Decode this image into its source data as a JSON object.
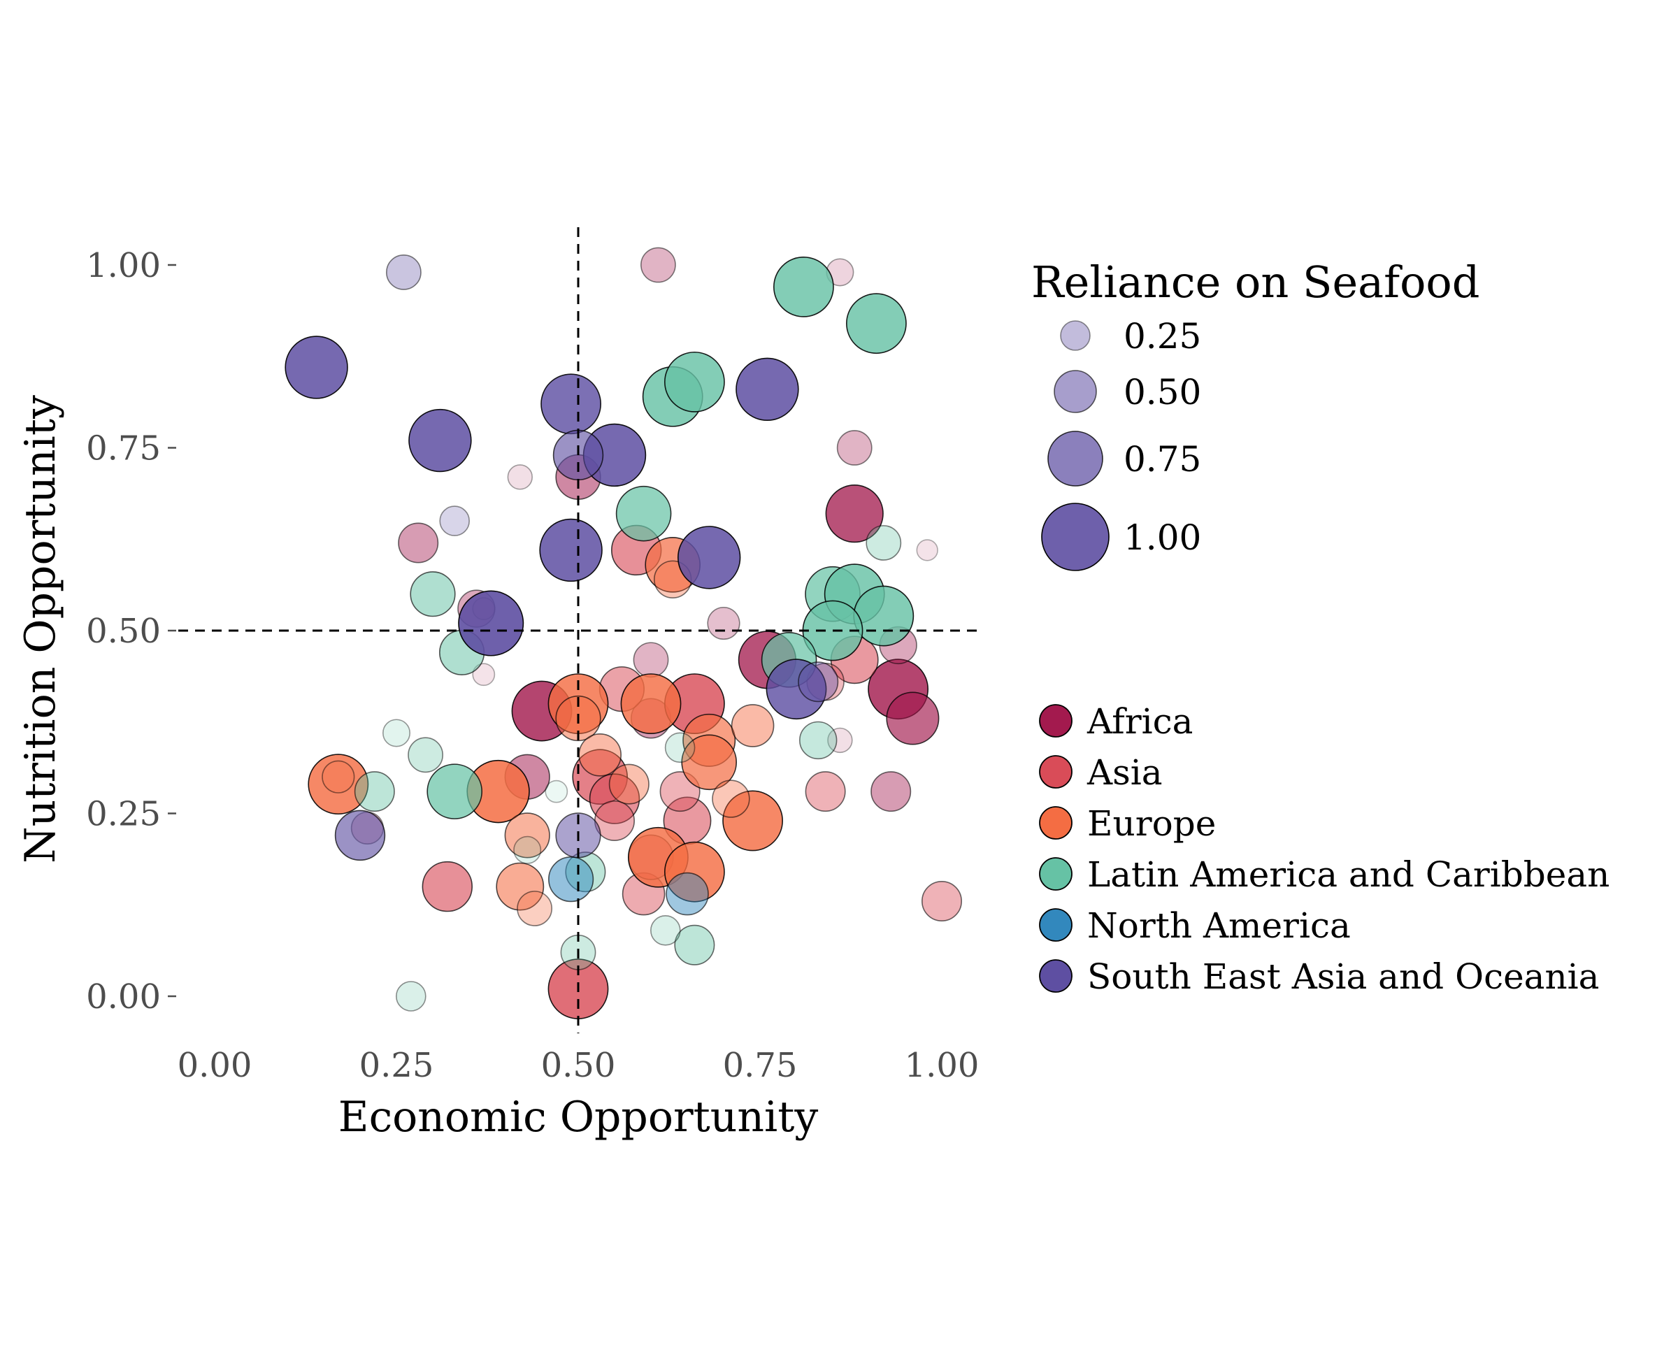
{
  "chart_data": {
    "type": "scatter",
    "xlabel": "Economic Opportunity",
    "ylabel": "Nutrition Opportunity",
    "xlim": [
      -0.05,
      1.05
    ],
    "ylim": [
      -0.05,
      1.05
    ],
    "x_ticks": [
      "0.00",
      "0.25",
      "0.50",
      "0.75",
      "1.00"
    ],
    "y_ticks": [
      "0.00",
      "0.25",
      "0.50",
      "0.75",
      "1.00"
    ],
    "x_tick_values": [
      0,
      0.25,
      0.5,
      0.75,
      1
    ],
    "y_tick_values": [
      0,
      0.25,
      0.5,
      0.75,
      1
    ],
    "grid": false,
    "reference_lines": {
      "x": 0.5,
      "y": 0.5,
      "style": "dashed"
    },
    "size_legend": {
      "title": "Reliance on Seafood",
      "labels": [
        "0.25",
        "0.50",
        "0.75",
        "1.00"
      ],
      "values": [
        0.25,
        0.5,
        0.75,
        1.0
      ]
    },
    "color_legend": {
      "title": "",
      "position": "right"
    },
    "series": [
      {
        "name": "Africa",
        "color": "#a31a4e",
        "points": [
          {
            "x": 0.88,
            "y": 0.66,
            "r": 0.8
          },
          {
            "x": 0.45,
            "y": 0.39,
            "r": 0.85
          },
          {
            "x": 0.76,
            "y": 0.46,
            "r": 0.8
          },
          {
            "x": 0.94,
            "y": 0.42,
            "r": 0.85
          },
          {
            "x": 0.96,
            "y": 0.38,
            "r": 0.7
          },
          {
            "x": 0.5,
            "y": 0.71,
            "r": 0.55
          },
          {
            "x": 0.43,
            "y": 0.3,
            "r": 0.55
          },
          {
            "x": 0.28,
            "y": 0.62,
            "r": 0.45
          },
          {
            "x": 0.88,
            "y": 0.75,
            "r": 0.35
          },
          {
            "x": 0.93,
            "y": 0.28,
            "r": 0.45
          },
          {
            "x": 0.36,
            "y": 0.53,
            "r": 0.4
          },
          {
            "x": 0.6,
            "y": 0.46,
            "r": 0.35
          },
          {
            "x": 0.21,
            "y": 0.23,
            "r": 0.3
          },
          {
            "x": 0.61,
            "y": 1.0,
            "r": 0.35
          },
          {
            "x": 0.86,
            "y": 0.99,
            "r": 0.2
          },
          {
            "x": 0.42,
            "y": 0.71,
            "r": 0.15
          },
          {
            "x": 0.86,
            "y": 0.35,
            "r": 0.15
          },
          {
            "x": 0.37,
            "y": 0.44,
            "r": 0.1
          },
          {
            "x": 0.98,
            "y": 0.61,
            "r": 0.08
          },
          {
            "x": 0.7,
            "y": 0.51,
            "r": 0.3
          },
          {
            "x": 0.94,
            "y": 0.48,
            "r": 0.4
          },
          {
            "x": 0.6,
            "y": 0.38,
            "r": 0.45
          },
          {
            "x": 0.37,
            "y": 0.53,
            "r": 0.1
          }
        ]
      },
      {
        "name": "Asia",
        "color": "#d94c58",
        "points": [
          {
            "x": 0.5,
            "y": 0.01,
            "r": 0.85
          },
          {
            "x": 0.66,
            "y": 0.4,
            "r": 0.85
          },
          {
            "x": 0.53,
            "y": 0.3,
            "r": 0.75
          },
          {
            "x": 0.55,
            "y": 0.27,
            "r": 0.65
          },
          {
            "x": 0.32,
            "y": 0.15,
            "r": 0.65
          },
          {
            "x": 0.58,
            "y": 0.61,
            "r": 0.65
          },
          {
            "x": 0.65,
            "y": 0.24,
            "r": 0.6
          },
          {
            "x": 0.88,
            "y": 0.46,
            "r": 0.6
          },
          {
            "x": 0.59,
            "y": 0.14,
            "r": 0.5
          },
          {
            "x": 0.84,
            "y": 0.28,
            "r": 0.45
          },
          {
            "x": 1.0,
            "y": 0.13,
            "r": 0.45
          },
          {
            "x": 0.64,
            "y": 0.28,
            "r": 0.45
          },
          {
            "x": 0.56,
            "y": 0.42,
            "r": 0.55
          },
          {
            "x": 0.6,
            "y": 0.19,
            "r": 0.55
          },
          {
            "x": 0.84,
            "y": 0.43,
            "r": 0.4
          },
          {
            "x": 0.55,
            "y": 0.24,
            "r": 0.45
          }
        ]
      },
      {
        "name": "Europe",
        "color": "#f46d43",
        "points": [
          {
            "x": 0.17,
            "y": 0.29,
            "r": 0.85
          },
          {
            "x": 0.39,
            "y": 0.28,
            "r": 0.9
          },
          {
            "x": 0.5,
            "y": 0.4,
            "r": 0.85
          },
          {
            "x": 0.6,
            "y": 0.4,
            "r": 0.85
          },
          {
            "x": 0.63,
            "y": 0.59,
            "r": 0.75
          },
          {
            "x": 0.74,
            "y": 0.24,
            "r": 0.85
          },
          {
            "x": 0.61,
            "y": 0.19,
            "r": 0.85
          },
          {
            "x": 0.66,
            "y": 0.17,
            "r": 0.85
          },
          {
            "x": 0.68,
            "y": 0.35,
            "r": 0.7
          },
          {
            "x": 0.68,
            "y": 0.32,
            "r": 0.75
          },
          {
            "x": 0.43,
            "y": 0.22,
            "r": 0.55
          },
          {
            "x": 0.42,
            "y": 0.15,
            "r": 0.6
          },
          {
            "x": 0.5,
            "y": 0.38,
            "r": 0.55
          },
          {
            "x": 0.53,
            "y": 0.33,
            "r": 0.5
          },
          {
            "x": 0.74,
            "y": 0.37,
            "r": 0.5
          },
          {
            "x": 0.57,
            "y": 0.29,
            "r": 0.45
          },
          {
            "x": 0.44,
            "y": 0.12,
            "r": 0.35
          },
          {
            "x": 0.71,
            "y": 0.27,
            "r": 0.4
          },
          {
            "x": 0.17,
            "y": 0.3,
            "r": 0.3
          },
          {
            "x": 0.63,
            "y": 0.57,
            "r": 0.4
          }
        ]
      },
      {
        "name": "Latin America and Caribbean",
        "color": "#66c2a5",
        "points": [
          {
            "x": 0.81,
            "y": 0.97,
            "r": 0.85
          },
          {
            "x": 0.91,
            "y": 0.92,
            "r": 0.85
          },
          {
            "x": 0.63,
            "y": 0.82,
            "r": 0.85
          },
          {
            "x": 0.66,
            "y": 0.84,
            "r": 0.85
          },
          {
            "x": 0.59,
            "y": 0.66,
            "r": 0.75
          },
          {
            "x": 0.85,
            "y": 0.55,
            "r": 0.75
          },
          {
            "x": 0.88,
            "y": 0.55,
            "r": 0.85
          },
          {
            "x": 0.92,
            "y": 0.52,
            "r": 0.85
          },
          {
            "x": 0.85,
            "y": 0.5,
            "r": 0.85
          },
          {
            "x": 0.79,
            "y": 0.46,
            "r": 0.75
          },
          {
            "x": 0.33,
            "y": 0.28,
            "r": 0.75
          },
          {
            "x": 0.3,
            "y": 0.55,
            "r": 0.55
          },
          {
            "x": 0.34,
            "y": 0.47,
            "r": 0.55
          },
          {
            "x": 0.22,
            "y": 0.28,
            "r": 0.45
          },
          {
            "x": 0.29,
            "y": 0.33,
            "r": 0.35
          },
          {
            "x": 0.66,
            "y": 0.07,
            "r": 0.45
          },
          {
            "x": 0.51,
            "y": 0.17,
            "r": 0.45
          },
          {
            "x": 0.83,
            "y": 0.35,
            "r": 0.4
          },
          {
            "x": 0.92,
            "y": 0.62,
            "r": 0.35
          },
          {
            "x": 0.62,
            "y": 0.09,
            "r": 0.25
          },
          {
            "x": 0.5,
            "y": 0.06,
            "r": 0.35
          },
          {
            "x": 0.27,
            "y": 0.0,
            "r": 0.25
          },
          {
            "x": 0.25,
            "y": 0.36,
            "r": 0.2
          },
          {
            "x": 0.64,
            "y": 0.34,
            "r": 0.25
          },
          {
            "x": 0.43,
            "y": 0.2,
            "r": 0.2
          },
          {
            "x": 0.47,
            "y": 0.28,
            "r": 0.1
          }
        ]
      },
      {
        "name": "North America",
        "color": "#3288bd",
        "points": [
          {
            "x": 0.49,
            "y": 0.16,
            "r": 0.55
          },
          {
            "x": 0.65,
            "y": 0.14,
            "r": 0.5
          }
        ]
      },
      {
        "name": "South East Asia and Oceania",
        "color": "#5e4fa2",
        "points": [
          {
            "x": 0.14,
            "y": 0.86,
            "r": 0.9
          },
          {
            "x": 0.31,
            "y": 0.76,
            "r": 0.9
          },
          {
            "x": 0.49,
            "y": 0.81,
            "r": 0.85
          },
          {
            "x": 0.76,
            "y": 0.83,
            "r": 0.9
          },
          {
            "x": 0.55,
            "y": 0.74,
            "r": 0.9
          },
          {
            "x": 0.5,
            "y": 0.74,
            "r": 0.65
          },
          {
            "x": 0.49,
            "y": 0.61,
            "r": 0.9
          },
          {
            "x": 0.68,
            "y": 0.6,
            "r": 0.9
          },
          {
            "x": 0.38,
            "y": 0.51,
            "r": 0.95
          },
          {
            "x": 0.8,
            "y": 0.42,
            "r": 0.85
          },
          {
            "x": 0.2,
            "y": 0.22,
            "r": 0.65
          },
          {
            "x": 0.5,
            "y": 0.22,
            "r": 0.55
          },
          {
            "x": 0.26,
            "y": 0.99,
            "r": 0.35
          },
          {
            "x": 0.33,
            "y": 0.65,
            "r": 0.25
          },
          {
            "x": 0.83,
            "y": 0.43,
            "r": 0.45
          }
        ]
      }
    ]
  }
}
